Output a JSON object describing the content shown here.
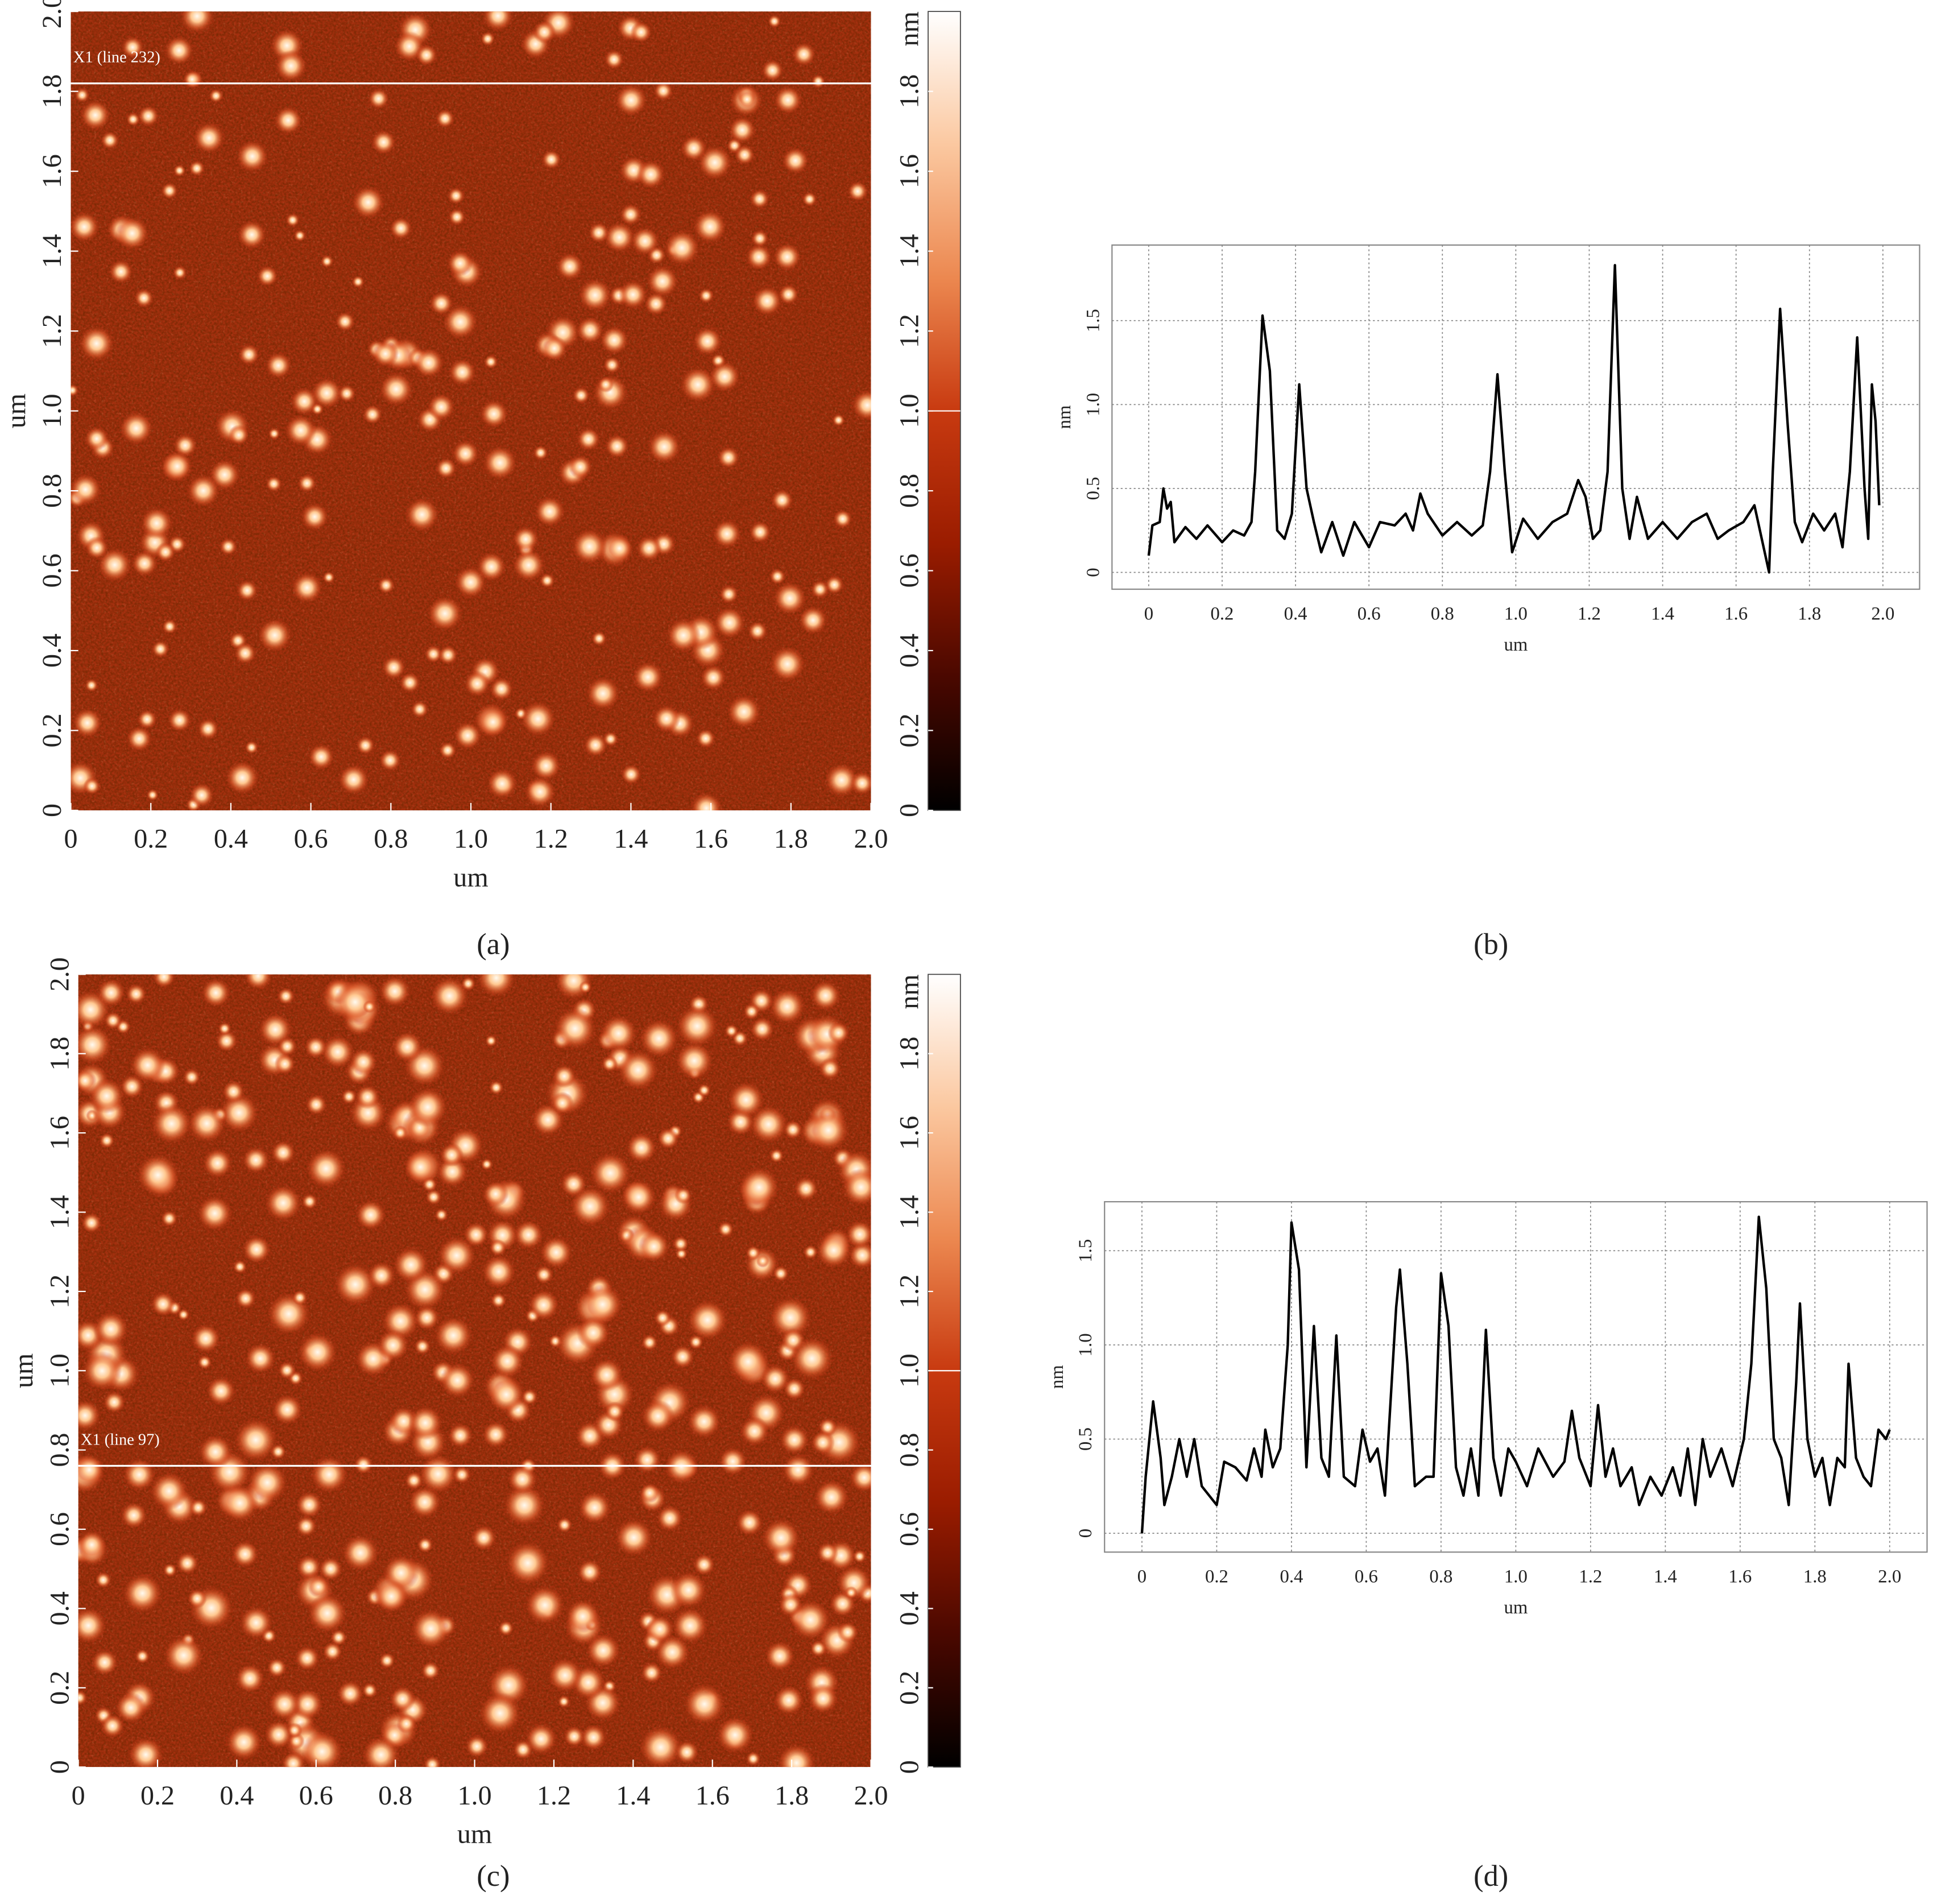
{
  "chart_data": [
    {
      "type": "image",
      "panel": "(a)",
      "xlabel": "um",
      "ylabel": "um",
      "xlim": [
        0,
        2
      ],
      "ylim": [
        0,
        2
      ],
      "xticks": [
        0,
        0.2,
        0.4,
        0.6,
        0.8,
        {
          "value": 1,
          "label": "1.0"
        },
        1.2,
        1.4,
        1.6,
        1.8,
        {
          "value": 2,
          "label": "2.0"
        }
      ],
      "yticks": [
        0,
        0.2,
        0.4,
        0.6,
        0.8,
        {
          "value": 1,
          "label": "1.0"
        },
        1.2,
        1.4,
        1.6,
        1.8,
        {
          "value": 2,
          "label": "2.0"
        }
      ],
      "colorbar": {
        "label": "nm",
        "lim": [
          0,
          2
        ],
        "ticks": [
          0,
          0.2,
          0.4,
          0.6,
          0.8,
          {
            "value": 1,
            "label": "1.0"
          },
          1.2,
          1.4,
          1.6,
          1.8
        ],
        "colors": [
          "#000000",
          "#4a0800",
          "#9a1c00",
          "#c83a10",
          "#ec8850",
          "#fbc8a0",
          "#ffffff"
        ]
      },
      "scan_line": {
        "label": "X1 (line 232)",
        "y": 1.82
      }
    },
    {
      "type": "line",
      "panel": "(b)",
      "xlabel": "um",
      "ylabel": "nm",
      "color": "#000000",
      "grid": true,
      "xlim": [
        -0.1,
        2.1
      ],
      "ylim": [
        -0.1,
        1.95
      ],
      "xticks": [
        0,
        0.2,
        0.4,
        0.6,
        0.8,
        {
          "value": 1,
          "label": "1.0"
        },
        1.2,
        1.4,
        1.6,
        1.8,
        {
          "value": 2,
          "label": "2.0"
        }
      ],
      "yticks": [
        0,
        0.5,
        {
          "value": 1,
          "label": "1.0"
        },
        1.5
      ],
      "x": [
        0,
        0.01,
        0.03,
        0.04,
        0.05,
        0.06,
        0.07,
        0.1,
        0.13,
        0.16,
        0.2,
        0.23,
        0.26,
        0.28,
        0.29,
        0.31,
        0.33,
        0.35,
        0.37,
        0.39,
        0.41,
        0.43,
        0.45,
        0.47,
        0.5,
        0.53,
        0.56,
        0.6,
        0.63,
        0.67,
        0.7,
        0.72,
        0.74,
        0.76,
        0.8,
        0.84,
        0.88,
        0.91,
        0.93,
        0.95,
        0.97,
        0.99,
        1.02,
        1.06,
        1.1,
        1.14,
        1.17,
        1.19,
        1.21,
        1.23,
        1.25,
        1.27,
        1.29,
        1.31,
        1.33,
        1.36,
        1.4,
        1.44,
        1.48,
        1.52,
        1.55,
        1.58,
        1.62,
        1.65,
        1.67,
        1.69,
        1.7,
        1.72,
        1.74,
        1.76,
        1.78,
        1.81,
        1.84,
        1.87,
        1.89,
        1.91,
        1.93,
        1.95,
        1.96,
        1.97,
        1.98,
        1.99
      ],
      "values": [
        0.1,
        0.28,
        0.3,
        0.5,
        0.38,
        0.42,
        0.18,
        0.27,
        0.2,
        0.28,
        0.18,
        0.25,
        0.22,
        0.3,
        0.6,
        1.53,
        1.2,
        0.25,
        0.2,
        0.35,
        1.12,
        0.5,
        0.3,
        0.12,
        0.3,
        0.1,
        0.3,
        0.15,
        0.3,
        0.28,
        0.35,
        0.25,
        0.47,
        0.35,
        0.22,
        0.3,
        0.22,
        0.28,
        0.6,
        1.18,
        0.6,
        0.12,
        0.32,
        0.2,
        0.3,
        0.35,
        0.55,
        0.45,
        0.2,
        0.25,
        0.6,
        1.83,
        0.5,
        0.2,
        0.45,
        0.2,
        0.3,
        0.2,
        0.3,
        0.35,
        0.2,
        0.25,
        0.3,
        0.4,
        0.2,
        0.0,
        0.6,
        1.57,
        0.9,
        0.3,
        0.18,
        0.35,
        0.25,
        0.35,
        0.15,
        0.6,
        1.4,
        0.5,
        0.2,
        1.12,
        0.9,
        0.4
      ]
    },
    {
      "type": "image",
      "panel": "(c)",
      "xlabel": "um",
      "ylabel": "um",
      "xlim": [
        0,
        2
      ],
      "ylim": [
        0,
        2
      ],
      "xticks": [
        0,
        0.2,
        0.4,
        0.6,
        0.8,
        {
          "value": 1,
          "label": "1.0"
        },
        1.2,
        1.4,
        1.6,
        1.8,
        {
          "value": 2,
          "label": "2.0"
        }
      ],
      "yticks": [
        0,
        0.2,
        0.4,
        0.6,
        0.8,
        {
          "value": 1,
          "label": "1.0"
        },
        1.2,
        1.4,
        1.6,
        1.8,
        {
          "value": 2,
          "label": "2.0"
        }
      ],
      "colorbar": {
        "label": "nm",
        "lim": [
          0,
          2
        ],
        "ticks": [
          0,
          0.2,
          0.4,
          0.6,
          0.8,
          {
            "value": 1,
            "label": "1.0"
          },
          1.2,
          1.4,
          1.6,
          1.8
        ],
        "colors": [
          "#000000",
          "#4a0800",
          "#9a1c00",
          "#c83a10",
          "#ec8850",
          "#fbc8a0",
          "#ffffff"
        ]
      },
      "scan_line": {
        "label": "X1 (line 97)",
        "y": 0.76
      }
    },
    {
      "type": "line",
      "panel": "(d)",
      "xlabel": "um",
      "ylabel": "nm",
      "color": "#000000",
      "grid": true,
      "xlim": [
        -0.1,
        2.1
      ],
      "ylim": [
        -0.1,
        1.76
      ],
      "xticks": [
        0,
        0.2,
        0.4,
        0.6,
        0.8,
        {
          "value": 1,
          "label": "1.0"
        },
        1.2,
        1.4,
        1.6,
        1.8,
        {
          "value": 2,
          "label": "2.0"
        }
      ],
      "yticks": [
        0,
        0.5,
        {
          "value": 1,
          "label": "1.0"
        },
        1.5
      ],
      "x": [
        0,
        0.01,
        0.03,
        0.05,
        0.06,
        0.08,
        0.1,
        0.12,
        0.14,
        0.16,
        0.2,
        0.22,
        0.25,
        0.28,
        0.3,
        0.32,
        0.33,
        0.35,
        0.37,
        0.39,
        0.4,
        0.42,
        0.44,
        0.46,
        0.48,
        0.5,
        0.52,
        0.54,
        0.57,
        0.59,
        0.61,
        0.63,
        0.65,
        0.68,
        0.69,
        0.71,
        0.73,
        0.76,
        0.78,
        0.8,
        0.82,
        0.84,
        0.86,
        0.88,
        0.9,
        0.92,
        0.94,
        0.96,
        0.98,
        1.0,
        1.03,
        1.06,
        1.1,
        1.13,
        1.15,
        1.17,
        1.2,
        1.22,
        1.24,
        1.26,
        1.28,
        1.31,
        1.33,
        1.36,
        1.39,
        1.42,
        1.44,
        1.46,
        1.48,
        1.5,
        1.52,
        1.55,
        1.58,
        1.61,
        1.63,
        1.65,
        1.67,
        1.69,
        1.71,
        1.73,
        1.75,
        1.76,
        1.78,
        1.8,
        1.82,
        1.84,
        1.86,
        1.88,
        1.89,
        1.91,
        1.93,
        1.95,
        1.97,
        1.99,
        2.0
      ],
      "values": [
        0.0,
        0.3,
        0.7,
        0.4,
        0.15,
        0.3,
        0.5,
        0.3,
        0.5,
        0.25,
        0.15,
        0.38,
        0.35,
        0.28,
        0.45,
        0.3,
        0.55,
        0.35,
        0.45,
        1.0,
        1.65,
        1.4,
        0.35,
        1.1,
        0.4,
        0.3,
        1.05,
        0.3,
        0.25,
        0.55,
        0.38,
        0.45,
        0.2,
        1.2,
        1.4,
        0.9,
        0.25,
        0.3,
        0.3,
        1.38,
        1.1,
        0.35,
        0.2,
        0.45,
        0.2,
        1.08,
        0.4,
        0.2,
        0.45,
        0.38,
        0.25,
        0.45,
        0.3,
        0.38,
        0.65,
        0.4,
        0.25,
        0.68,
        0.3,
        0.45,
        0.25,
        0.35,
        0.15,
        0.3,
        0.2,
        0.35,
        0.2,
        0.45,
        0.15,
        0.5,
        0.3,
        0.45,
        0.25,
        0.5,
        0.9,
        1.68,
        1.3,
        0.5,
        0.4,
        0.15,
        0.8,
        1.22,
        0.5,
        0.3,
        0.4,
        0.15,
        0.4,
        0.35,
        0.9,
        0.4,
        0.3,
        0.25,
        0.55,
        0.5,
        0.55
      ]
    }
  ]
}
